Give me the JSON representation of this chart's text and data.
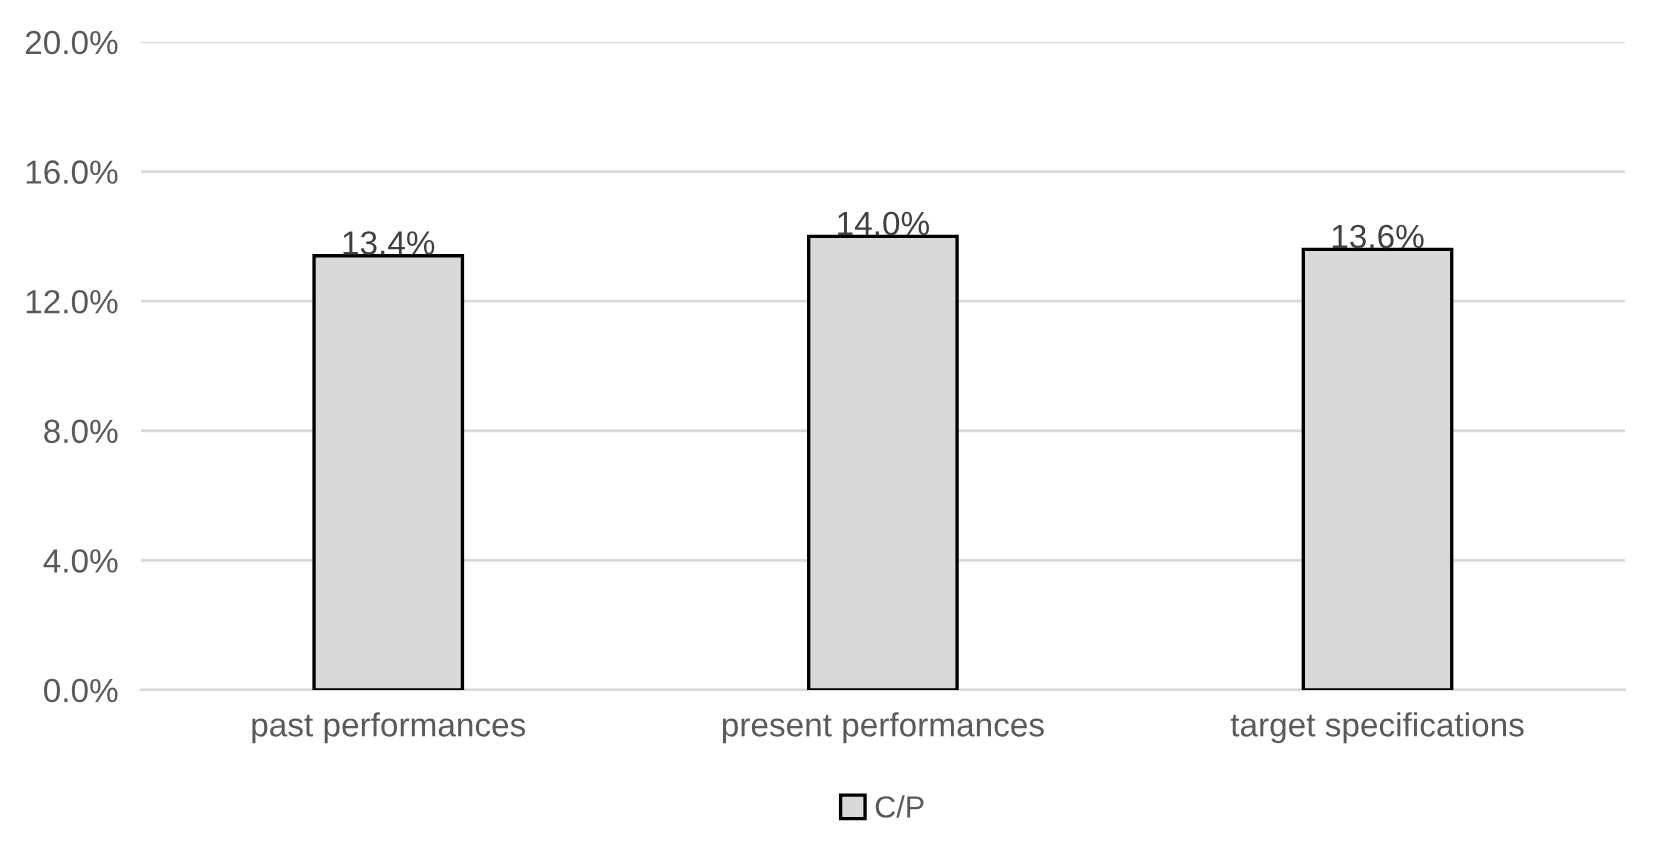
{
  "chart_data": {
    "type": "bar",
    "categories": [
      "past performances",
      "present performances",
      "target specifications"
    ],
    "series": [
      {
        "name": "C/P",
        "color": "#d9d9d9",
        "values": [
          13.4,
          14.0,
          13.6
        ],
        "value_labels": [
          "13.4%",
          "14.0%",
          "13.6%"
        ]
      }
    ],
    "ylim": [
      0,
      20
    ],
    "yticks": [
      {
        "value": 0,
        "label": "0.0%"
      },
      {
        "value": 4,
        "label": "4.0%"
      },
      {
        "value": 8,
        "label": "8.0%"
      },
      {
        "value": 12,
        "label": "12.0%"
      },
      {
        "value": 16,
        "label": "16.0%"
      },
      {
        "value": 20,
        "label": "20.0%"
      }
    ],
    "grid": "y",
    "legend": "bottom"
  }
}
